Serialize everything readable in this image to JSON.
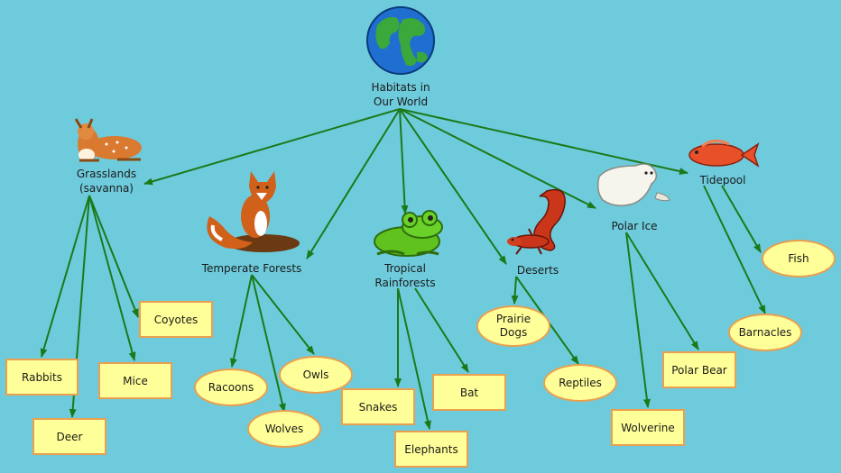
{
  "diagram": {
    "root": "Habitats in\nOur World",
    "habitats": {
      "grasslands": "Grasslands\n(savanna)",
      "temperate": "Temperate Forests",
      "tropical": "Tropical\nRainforests",
      "deserts": "Deserts",
      "polar": "Polar Ice",
      "tidepool": "Tidepool"
    },
    "animals": {
      "rabbits": "Rabbits",
      "deer": "Deer",
      "mice": "Mice",
      "coyotes": "Coyotes",
      "racoons": "Racoons",
      "wolves": "Wolves",
      "owls": "Owls",
      "snakes": "Snakes",
      "elephants": "Elephants",
      "bat": "Bat",
      "prairie_dogs": "Prairie\nDogs",
      "reptiles": "Reptiles",
      "wolverine": "Wolverine",
      "polar_bear": "Polar Bear",
      "barnacles": "Barnacles",
      "fish": "Fish"
    },
    "colors": {
      "background": "#6ecbdc",
      "arrow": "#1a7a1a",
      "node_fill": "#ffff99",
      "node_border": "#e8a050"
    },
    "icons": [
      "globe-icon",
      "deer-icon",
      "fox-icon",
      "frog-icon",
      "salamander-icon",
      "seal-icon",
      "fish-icon"
    ]
  }
}
